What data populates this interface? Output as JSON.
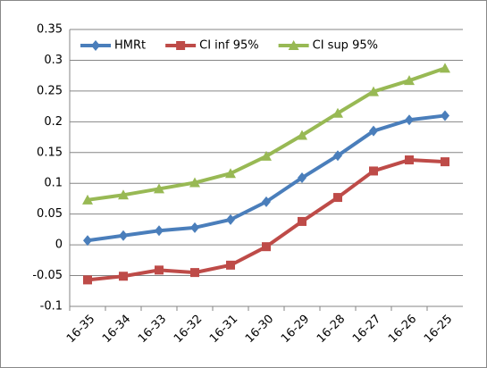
{
  "chart_data": {
    "type": "line",
    "categories": [
      "16-35",
      "16-34",
      "16-33",
      "16-32",
      "16-31",
      "16-30",
      "16-29",
      "16-28",
      "16-27",
      "16-26",
      "16-25"
    ],
    "series": [
      {
        "name": "HMRt",
        "color": "#4a7ebb",
        "marker": "diamond",
        "values": [
          0.007,
          0.015,
          0.023,
          0.028,
          0.041,
          0.07,
          0.109,
          0.145,
          0.185,
          0.203,
          0.21
        ]
      },
      {
        "name": "CI inf 95%",
        "color": "#be4b48",
        "marker": "square",
        "values": [
          -0.057,
          -0.051,
          -0.041,
          -0.045,
          -0.033,
          -0.003,
          0.038,
          0.077,
          0.12,
          0.138,
          0.135
        ]
      },
      {
        "name": "CI sup 95%",
        "color": "#98b954",
        "marker": "triangle",
        "values": [
          0.073,
          0.081,
          0.091,
          0.101,
          0.116,
          0.144,
          0.178,
          0.214,
          0.249,
          0.267,
          0.287
        ]
      }
    ],
    "ylim": [
      -0.1,
      0.35
    ],
    "yticks": [
      -0.1,
      -0.05,
      0,
      0.05,
      0.1,
      0.15,
      0.2,
      0.25,
      0.3,
      0.35
    ],
    "grid": true,
    "legend": "top-left"
  }
}
